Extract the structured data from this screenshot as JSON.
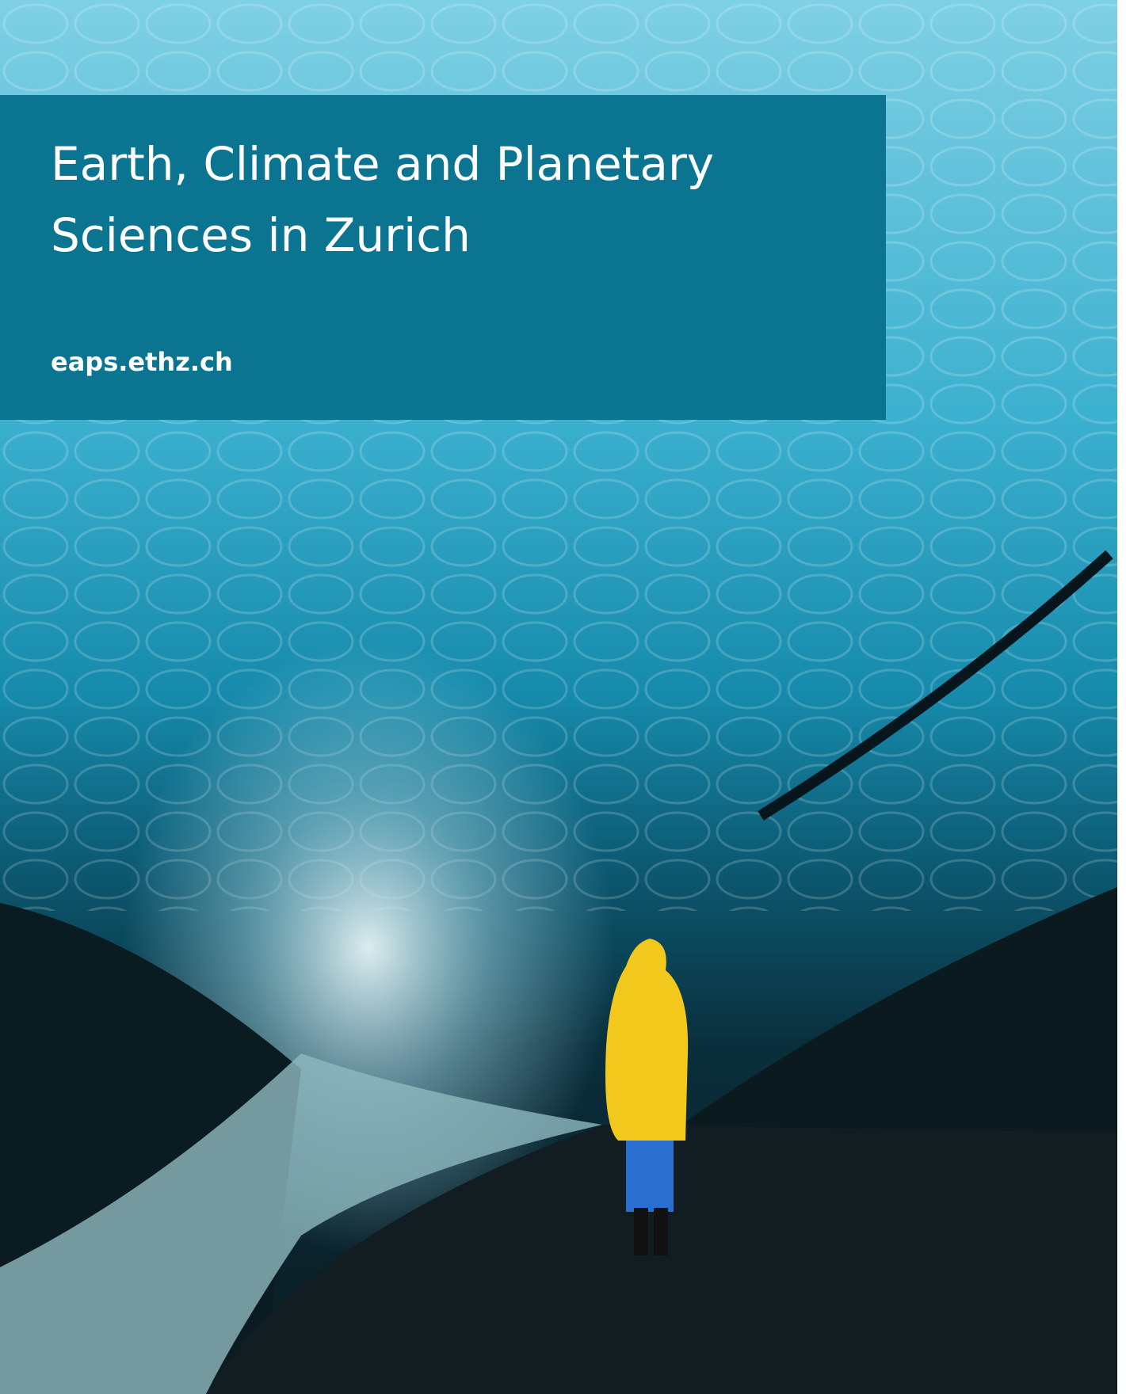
{
  "cover": {
    "title": "Earth, Climate and Planetary Sciences in Zurich",
    "url": "eaps.ethz.ch"
  }
}
